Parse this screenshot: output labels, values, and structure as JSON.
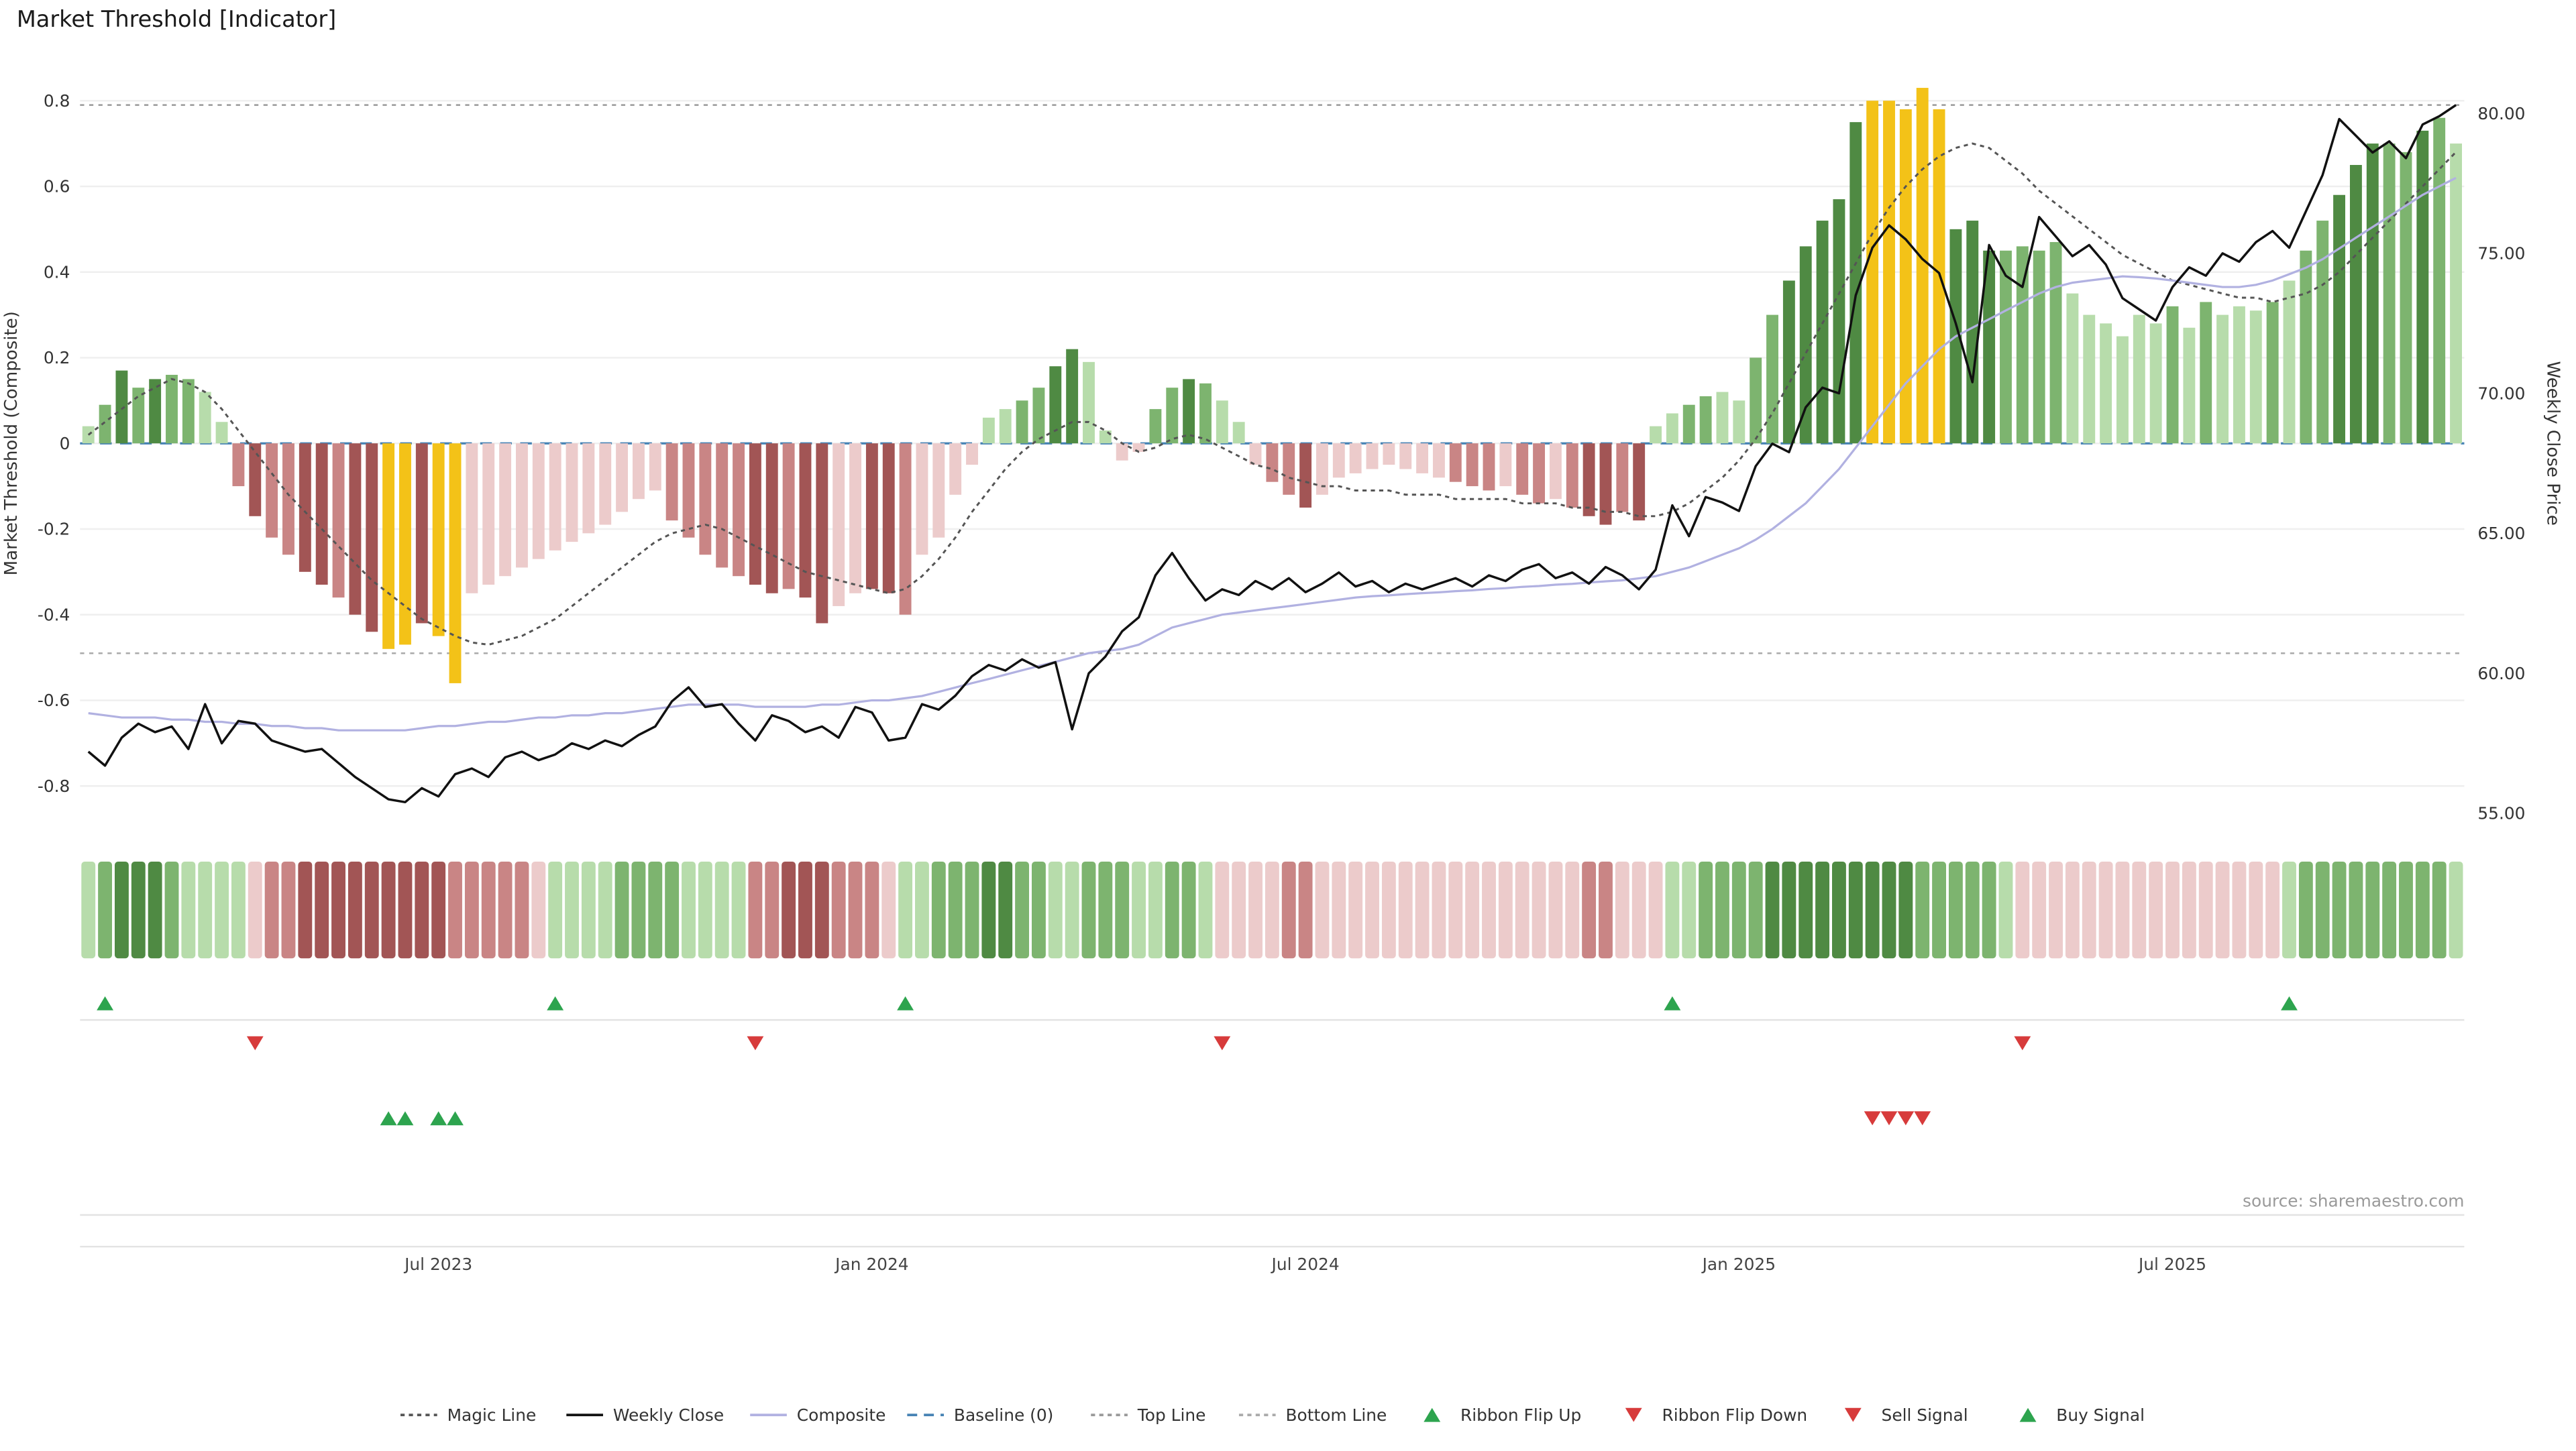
{
  "title": "Market Threshold [Indicator]",
  "source": "source: sharemaestro.com",
  "axes": {
    "left_label": "Market Threshold (Composite)",
    "right_label": "Weekly Close Price",
    "left_ticks": [
      {
        "label": "0.8",
        "value": 0.8
      },
      {
        "label": "0.6",
        "value": 0.6
      },
      {
        "label": "0.4",
        "value": 0.4
      },
      {
        "label": "0.2",
        "value": 0.2
      },
      {
        "label": "0",
        "value": 0
      },
      {
        "label": "-0.2",
        "value": -0.2
      },
      {
        "label": "-0.4",
        "value": -0.4
      },
      {
        "label": "-0.6",
        "value": -0.6
      },
      {
        "label": "-0.8",
        "value": -0.8
      }
    ],
    "right_ticks": [
      {
        "label": "80.00",
        "value": 80
      },
      {
        "label": "75.00",
        "value": 75
      },
      {
        "label": "70.00",
        "value": 70
      },
      {
        "label": "65.00",
        "value": 65
      },
      {
        "label": "60.00",
        "value": 60
      },
      {
        "label": "55.00",
        "value": 55
      }
    ],
    "x_ticks": [
      {
        "label": "Jul 2023",
        "week": 21
      },
      {
        "label": "Jan 2024",
        "week": 47
      },
      {
        "label": "Jul 2024",
        "week": 73
      },
      {
        "label": "Jan 2025",
        "week": 99
      },
      {
        "label": "Jul 2025",
        "week": 125
      }
    ]
  },
  "colors": {
    "palette": {
      "G": "#4f8a43",
      "g2": "#7db46f",
      "g1": "#b7dcab",
      "R": "#a25555",
      "r2": "#c98585",
      "r1": "#eccbcb",
      "Y": "#f3c218"
    },
    "weekly_close": "#111111",
    "magic_line": "#555555",
    "composite_line": "#b1b1e1",
    "baseline": "#4682b4",
    "top_line": "#999999",
    "bottom_line": "#aaaaaa",
    "signal_green": "#2da44e",
    "signal_red": "#d73b3b",
    "grid": "#efefef",
    "lane_line": "#e3e3e3"
  },
  "legend": [
    {
      "label": "Magic Line",
      "marker": "line",
      "color": "#555555",
      "dash": "2.5 2.5"
    },
    {
      "label": "Weekly Close",
      "marker": "line",
      "color": "#111111",
      "dash": ""
    },
    {
      "label": "Composite",
      "marker": "line",
      "color": "#b1b1e1",
      "dash": ""
    },
    {
      "label": "Baseline (0)",
      "marker": "line",
      "color": "#4682b4",
      "dash": "6 4"
    },
    {
      "label": "Top Line",
      "marker": "line",
      "color": "#999999",
      "dash": "2.5 2.5"
    },
    {
      "label": "Bottom Line",
      "marker": "line",
      "color": "#aaaaaa",
      "dash": "2.5 2.5"
    },
    {
      "label": "Ribbon Flip Up",
      "marker": "triangle-up",
      "color": "#2da44e"
    },
    {
      "label": "Ribbon Flip Down",
      "marker": "triangle-down",
      "color": "#d73b3b"
    },
    {
      "label": "Sell Signal",
      "marker": "triangle-down",
      "color": "#d73b3b"
    },
    {
      "label": "Buy Signal",
      "marker": "triangle-up",
      "color": "#2da44e"
    }
  ],
  "chart_data": {
    "type": "bar+line",
    "weeks": 143,
    "x_range": [
      "Feb 2023",
      "Nov 2025"
    ],
    "left_axis_range": [
      -0.95,
      0.88
    ],
    "right_axis_range": [
      53.7,
      81.7
    ],
    "baseline": 0,
    "top_line": 0.79,
    "bottom_line": -0.49,
    "grid": true,
    "legend_position": "bottom-center",
    "composite_bars": {
      "values": [
        0.04,
        0.09,
        0.17,
        0.13,
        0.15,
        0.16,
        0.15,
        0.12,
        0.05,
        -0.1,
        -0.17,
        -0.22,
        -0.26,
        -0.3,
        -0.33,
        -0.36,
        -0.4,
        -0.44,
        -0.48,
        -0.47,
        -0.42,
        -0.45,
        -0.56,
        -0.35,
        -0.33,
        -0.31,
        -0.29,
        -0.27,
        -0.25,
        -0.23,
        -0.21,
        -0.19,
        -0.16,
        -0.13,
        -0.11,
        -0.18,
        -0.22,
        -0.26,
        -0.29,
        -0.31,
        -0.33,
        -0.35,
        -0.34,
        -0.36,
        -0.42,
        -0.38,
        -0.35,
        -0.34,
        -0.35,
        -0.4,
        -0.26,
        -0.22,
        -0.12,
        -0.05,
        0.06,
        0.08,
        0.1,
        0.13,
        0.18,
        0.22,
        0.19,
        0.03,
        -0.04,
        -0.02,
        0.08,
        0.13,
        0.15,
        0.14,
        0.1,
        0.05,
        -0.05,
        -0.09,
        -0.12,
        -0.15,
        -0.12,
        -0.08,
        -0.07,
        -0.06,
        -0.05,
        -0.06,
        -0.07,
        -0.08,
        -0.09,
        -0.1,
        -0.11,
        -0.1,
        -0.12,
        -0.14,
        -0.13,
        -0.15,
        -0.17,
        -0.19,
        -0.16,
        -0.18,
        0.04,
        0.07,
        0.09,
        0.11,
        0.12,
        0.1,
        0.2,
        0.3,
        0.38,
        0.46,
        0.52,
        0.57,
        0.75,
        0.8,
        0.8,
        0.78,
        0.83,
        0.78,
        0.5,
        0.52,
        0.45,
        0.45,
        0.46,
        0.45,
        0.47,
        0.35,
        0.3,
        0.28,
        0.25,
        0.3,
        0.28,
        0.32,
        0.27,
        0.33,
        0.3,
        0.32,
        0.31,
        0.33,
        0.38,
        0.45,
        0.52,
        0.58,
        0.65,
        0.7,
        0.7,
        0.68,
        0.73,
        0.76,
        0.7
      ],
      "colors": [
        "g1",
        "g2",
        "G",
        "g2",
        "G",
        "g2",
        "g2",
        "g1",
        "g1",
        "r2",
        "R",
        "r2",
        "r2",
        "R",
        "R",
        "r2",
        "R",
        "R",
        "Y",
        "Y",
        "R",
        "Y",
        "Y",
        "r1",
        "r1",
        "r1",
        "r1",
        "r1",
        "r1",
        "r1",
        "r1",
        "r1",
        "r1",
        "r1",
        "r1",
        "r2",
        "r2",
        "r2",
        "r2",
        "r2",
        "R",
        "R",
        "r2",
        "R",
        "R",
        "r1",
        "r1",
        "R",
        "R",
        "r2",
        "r1",
        "r1",
        "r1",
        "r1",
        "g1",
        "g1",
        "g2",
        "g2",
        "G",
        "G",
        "g1",
        "g1",
        "r1",
        "r1",
        "g2",
        "g2",
        "G",
        "g2",
        "g1",
        "g1",
        "r1",
        "r2",
        "r2",
        "R",
        "r1",
        "r1",
        "r1",
        "r1",
        "r1",
        "r1",
        "r1",
        "r1",
        "r2",
        "r2",
        "r2",
        "r1",
        "r2",
        "r2",
        "r1",
        "r2",
        "R",
        "R",
        "r2",
        "R",
        "g1",
        "g1",
        "g2",
        "g2",
        "g1",
        "g1",
        "g2",
        "g2",
        "G",
        "G",
        "G",
        "G",
        "G",
        "Y",
        "Y",
        "Y",
        "Y",
        "Y",
        "G",
        "G",
        "G",
        "g2",
        "g2",
        "g2",
        "g2",
        "g1",
        "g1",
        "g1",
        "g1",
        "g1",
        "g1",
        "g2",
        "g1",
        "g2",
        "g1",
        "g1",
        "g1",
        "g2",
        "g1",
        "g2",
        "g2",
        "G",
        "G",
        "G",
        "g2",
        "g2",
        "G",
        "g2",
        "g1"
      ]
    },
    "magic_line": {
      "values": [
        0.02,
        0.05,
        0.08,
        0.11,
        0.13,
        0.15,
        0.14,
        0.12,
        0.08,
        0.03,
        -0.02,
        -0.07,
        -0.12,
        -0.16,
        -0.2,
        -0.24,
        -0.28,
        -0.32,
        -0.35,
        -0.38,
        -0.41,
        -0.43,
        -0.45,
        -0.465,
        -0.47,
        -0.46,
        -0.45,
        -0.43,
        -0.41,
        -0.38,
        -0.35,
        -0.32,
        -0.29,
        -0.26,
        -0.23,
        -0.21,
        -0.2,
        -0.19,
        -0.2,
        -0.22,
        -0.24,
        -0.26,
        -0.28,
        -0.3,
        -0.31,
        -0.32,
        -0.33,
        -0.34,
        -0.35,
        -0.34,
        -0.31,
        -0.27,
        -0.22,
        -0.16,
        -0.11,
        -0.06,
        -0.02,
        0.01,
        0.03,
        0.05,
        0.05,
        0.03,
        0.0,
        -0.02,
        -0.01,
        0.01,
        0.02,
        0.01,
        -0.01,
        -0.03,
        -0.05,
        -0.06,
        -0.08,
        -0.09,
        -0.1,
        -0.1,
        -0.11,
        -0.11,
        -0.11,
        -0.12,
        -0.12,
        -0.12,
        -0.13,
        -0.13,
        -0.13,
        -0.13,
        -0.14,
        -0.14,
        -0.14,
        -0.15,
        -0.15,
        -0.16,
        -0.16,
        -0.17,
        -0.17,
        -0.16,
        -0.14,
        -0.11,
        -0.08,
        -0.04,
        0.01,
        0.07,
        0.14,
        0.21,
        0.28,
        0.35,
        0.42,
        0.49,
        0.55,
        0.6,
        0.64,
        0.67,
        0.69,
        0.7,
        0.69,
        0.66,
        0.63,
        0.59,
        0.56,
        0.53,
        0.5,
        0.47,
        0.44,
        0.42,
        0.4,
        0.38,
        0.37,
        0.36,
        0.35,
        0.34,
        0.34,
        0.33,
        0.34,
        0.35,
        0.37,
        0.4,
        0.44,
        0.48,
        0.52,
        0.56,
        0.6,
        0.64,
        0.68
      ]
    },
    "weekly_close": {
      "values": [
        57.2,
        56.7,
        57.7,
        58.2,
        57.9,
        58.1,
        57.3,
        58.9,
        57.5,
        58.3,
        58.2,
        57.6,
        57.4,
        57.2,
        57.3,
        56.8,
        56.3,
        55.9,
        55.5,
        55.4,
        55.9,
        55.6,
        56.4,
        56.6,
        56.3,
        57.0,
        57.2,
        56.9,
        57.1,
        57.5,
        57.3,
        57.6,
        57.4,
        57.8,
        58.1,
        59.0,
        59.5,
        58.8,
        58.9,
        58.2,
        57.6,
        58.5,
        58.3,
        57.9,
        58.1,
        57.7,
        58.8,
        58.6,
        57.6,
        57.7,
        58.9,
        58.7,
        59.2,
        59.9,
        60.3,
        60.1,
        60.5,
        60.2,
        60.4,
        58.0,
        60.0,
        60.6,
        61.5,
        62.0,
        63.5,
        64.3,
        63.4,
        62.6,
        63.0,
        62.8,
        63.3,
        63.0,
        63.4,
        62.9,
        63.2,
        63.6,
        63.1,
        63.3,
        62.9,
        63.2,
        63.0,
        63.2,
        63.4,
        63.1,
        63.5,
        63.3,
        63.7,
        63.9,
        63.4,
        63.6,
        63.2,
        63.8,
        63.5,
        63.0,
        63.7,
        66.0,
        64.9,
        66.3,
        66.1,
        65.8,
        67.4,
        68.2,
        67.9,
        69.5,
        70.2,
        70.0,
        73.5,
        75.2,
        76.0,
        75.5,
        74.8,
        74.3,
        72.5,
        70.4,
        75.3,
        74.2,
        73.8,
        76.3,
        75.6,
        74.9,
        75.3,
        74.6,
        73.4,
        73.0,
        72.6,
        73.8,
        74.5,
        74.2,
        75.0,
        74.7,
        75.4,
        75.8,
        75.2,
        76.5,
        77.8,
        79.8,
        79.2,
        78.6,
        79.0,
        78.4,
        79.6,
        79.9,
        80.3
      ]
    },
    "composite_line": {
      "values": [
        -0.63,
        -0.635,
        -0.64,
        -0.64,
        -0.64,
        -0.645,
        -0.645,
        -0.65,
        -0.65,
        -0.655,
        -0.655,
        -0.66,
        -0.66,
        -0.665,
        -0.665,
        -0.67,
        -0.67,
        -0.67,
        -0.67,
        -0.67,
        -0.665,
        -0.66,
        -0.66,
        -0.655,
        -0.65,
        -0.65,
        -0.645,
        -0.64,
        -0.64,
        -0.635,
        -0.635,
        -0.63,
        -0.63,
        -0.625,
        -0.62,
        -0.615,
        -0.61,
        -0.61,
        -0.61,
        -0.61,
        -0.615,
        -0.615,
        -0.615,
        -0.615,
        -0.61,
        -0.61,
        -0.605,
        -0.6,
        -0.6,
        -0.595,
        -0.59,
        -0.58,
        -0.57,
        -0.56,
        -0.55,
        -0.54,
        -0.53,
        -0.52,
        -0.51,
        -0.5,
        -0.49,
        -0.485,
        -0.48,
        -0.47,
        -0.45,
        -0.43,
        -0.42,
        -0.41,
        -0.4,
        -0.395,
        -0.39,
        -0.385,
        -0.38,
        -0.375,
        -0.37,
        -0.365,
        -0.36,
        -0.357,
        -0.355,
        -0.352,
        -0.35,
        -0.348,
        -0.345,
        -0.343,
        -0.34,
        -0.338,
        -0.335,
        -0.333,
        -0.33,
        -0.328,
        -0.325,
        -0.322,
        -0.32,
        -0.315,
        -0.31,
        -0.3,
        -0.29,
        -0.275,
        -0.26,
        -0.245,
        -0.225,
        -0.2,
        -0.17,
        -0.14,
        -0.1,
        -0.06,
        -0.01,
        0.04,
        0.09,
        0.14,
        0.18,
        0.22,
        0.25,
        0.27,
        0.29,
        0.31,
        0.33,
        0.35,
        0.365,
        0.375,
        0.38,
        0.385,
        0.39,
        0.388,
        0.385,
        0.38,
        0.375,
        0.37,
        0.365,
        0.365,
        0.37,
        0.38,
        0.395,
        0.41,
        0.43,
        0.455,
        0.48,
        0.505,
        0.53,
        0.555,
        0.58,
        0.6,
        0.62
      ]
    },
    "ribbon": [
      "g1",
      "g2",
      "G",
      "G",
      "G",
      "g2",
      "g1",
      "g1",
      "g1",
      "g1",
      "r1",
      "r2",
      "r2",
      "R",
      "R",
      "R",
      "R",
      "R",
      "R",
      "R",
      "R",
      "R",
      "r2",
      "r2",
      "r2",
      "r2",
      "r2",
      "r1",
      "g1",
      "g1",
      "g1",
      "g1",
      "g2",
      "g2",
      "g2",
      "g2",
      "g1",
      "g1",
      "g1",
      "g1",
      "r2",
      "r2",
      "R",
      "R",
      "R",
      "r2",
      "r2",
      "r2",
      "r1",
      "g1",
      "g1",
      "g2",
      "g2",
      "g2",
      "G",
      "G",
      "g2",
      "g2",
      "g1",
      "g1",
      "g2",
      "g2",
      "g2",
      "g1",
      "g1",
      "g2",
      "g2",
      "g1",
      "r1",
      "r1",
      "r1",
      "r1",
      "r2",
      "r2",
      "r1",
      "r1",
      "r1",
      "r1",
      "r1",
      "r1",
      "r1",
      "r1",
      "r1",
      "r1",
      "r1",
      "r1",
      "r1",
      "r1",
      "r1",
      "r1",
      "r2",
      "r2",
      "r1",
      "r1",
      "r1",
      "g1",
      "g1",
      "g2",
      "g2",
      "g2",
      "g2",
      "G",
      "G",
      "G",
      "G",
      "G",
      "G",
      "G",
      "G",
      "G",
      "g2",
      "g2",
      "g2",
      "g2",
      "g2",
      "g1",
      "r1",
      "r1",
      "r1",
      "r1",
      "r1",
      "r1",
      "r1",
      "r1",
      "r1",
      "r1",
      "r1",
      "r1",
      "r1",
      "r1",
      "r1",
      "r1",
      "g1",
      "g2",
      "g2",
      "g2",
      "g2",
      "g2",
      "g2",
      "g2",
      "g2",
      "g2",
      "g1"
    ],
    "signals": {
      "ribbon_flip_up": [
        1,
        28,
        49,
        95,
        132
      ],
      "ribbon_flip_down": [
        10,
        40,
        68,
        116
      ],
      "buy": [
        18,
        19,
        21,
        22
      ],
      "sell": [
        107,
        108,
        109,
        110
      ]
    }
  }
}
